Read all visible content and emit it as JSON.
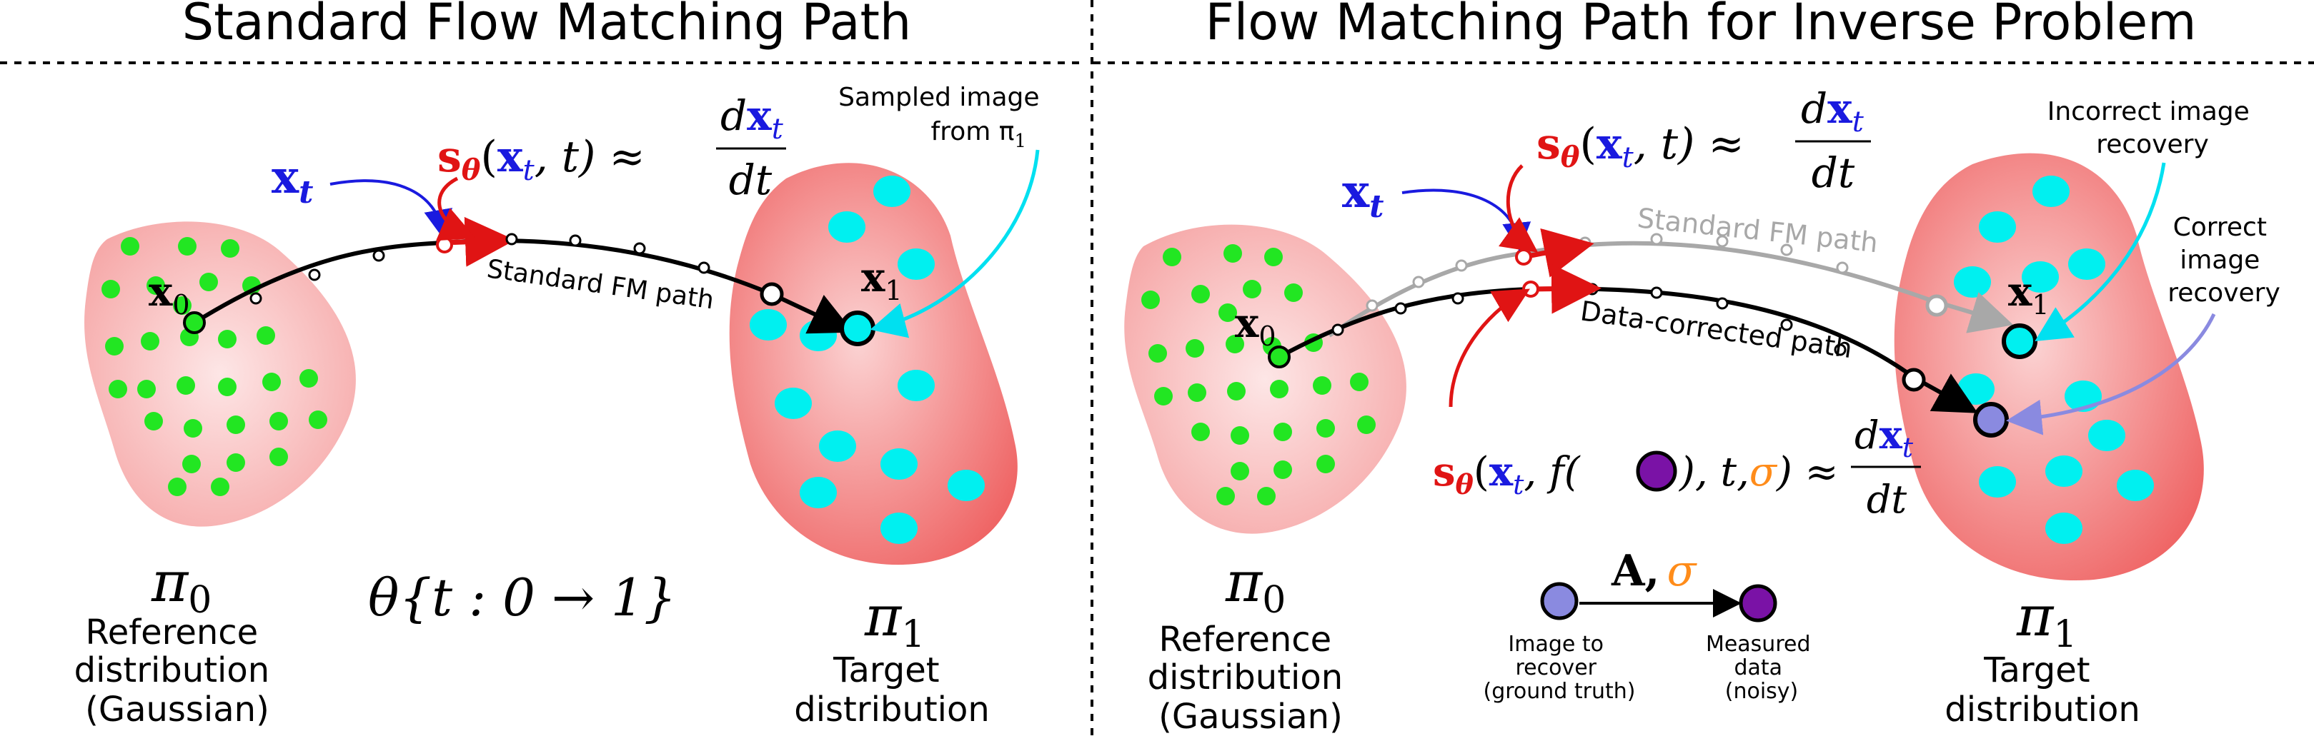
{
  "left_panel": {
    "title": "Standard Flow Matching Path",
    "xt_label": "x",
    "xt_sub": "t",
    "x0_label": "x",
    "x0_sub": "0",
    "x1_label": "x",
    "x1_sub": "1",
    "score_s": "s",
    "score_theta": "θ",
    "score_args_open": "(",
    "score_args_x": "x",
    "score_args_t_sub": "t",
    "score_args_rest": ", t) ≈",
    "frac_num_d": "d",
    "frac_num_x": "x",
    "frac_num_sub": "t",
    "frac_den": "dt",
    "path_label": "Standard FM path",
    "sampled_line1": "Sampled image",
    "sampled_line2": "from π",
    "sampled_sub": "1",
    "pi0": "π",
    "pi0_sub": "0",
    "ref_line1": "Reference",
    "ref_line2": "distribution",
    "ref_line3": "(Gaussian)",
    "theta_time": "θ{t : 0 → 1}",
    "pi1": "π",
    "pi1_sub": "1",
    "target_line1": "Target",
    "target_line2": "distribution"
  },
  "right_panel": {
    "title": "Flow Matching Path for Inverse Problem",
    "xt_label": "x",
    "xt_sub": "t",
    "x0_label": "x",
    "x0_sub": "0",
    "x1_label": "x",
    "x1_sub": "1",
    "score_s": "s",
    "score_theta": "θ",
    "score_args_open": "(",
    "score_args_x": "x",
    "score_args_t_sub": "t",
    "score_args_rest": ", t) ≈",
    "frac_num_d": "d",
    "frac_num_x": "x",
    "frac_num_sub": "t",
    "frac_den": "dt",
    "std_path_label": "Standard FM path",
    "data_path_label": "Data-corrected path",
    "incorrect_line1": "Incorrect image",
    "incorrect_line2": "recovery",
    "correct_line1": "Correct",
    "correct_line2": "image",
    "correct_line3": "recovery",
    "cond_s": "s",
    "cond_theta": "θ",
    "cond_open": "(",
    "cond_x": "x",
    "cond_x_sub": "t",
    "cond_f": ", f(",
    "cond_mid": "), t,",
    "cond_sigma": "σ",
    "cond_close": ") ≈",
    "op_A": "A,",
    "op_sigma": "σ",
    "gt_line1": "Image to",
    "gt_line2": "recover",
    "gt_line3": "(ground truth)",
    "meas_line1": "Measured",
    "meas_line2": "data",
    "meas_line3": "(noisy)",
    "pi0": "π",
    "pi0_sub": "0",
    "ref_line1": "Reference",
    "ref_line2": "distribution",
    "ref_line3": "(Gaussian)",
    "pi1": "π",
    "pi1_sub": "1",
    "target_line1": "Target",
    "target_line2": "distribution"
  },
  "colors": {
    "xt_blue": "#1a1adf",
    "score_red": "#e01414",
    "cyan": "#00f0f0",
    "green": "#22e622",
    "purple": "#7a12a6",
    "lavender": "#8a8ae0",
    "sigma_orange": "#ff8c1a",
    "gray_path": "#a8a8a8"
  }
}
